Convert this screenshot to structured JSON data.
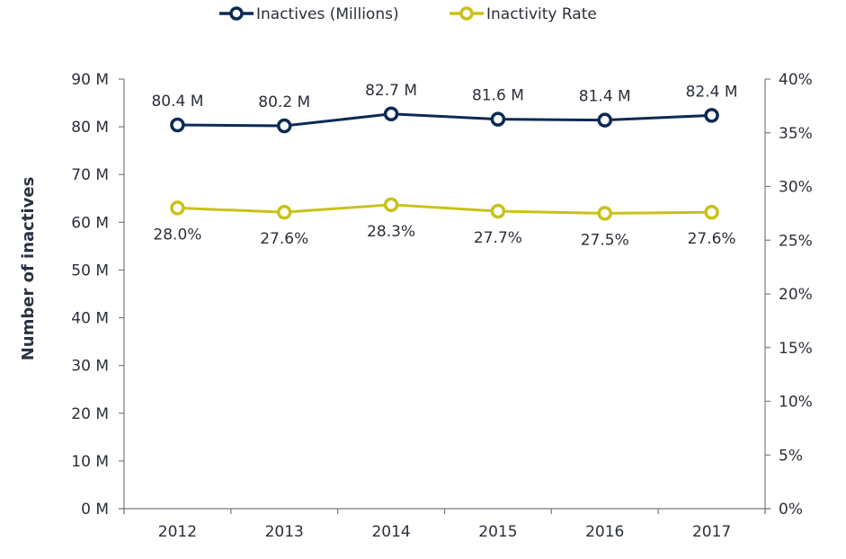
{
  "chart_data": {
    "type": "line",
    "title": "",
    "xlabel": "",
    "ylabel": "Number of inactives",
    "y2label": "",
    "categories": [
      "2012",
      "2013",
      "2014",
      "2015",
      "2016",
      "2017"
    ],
    "series": [
      {
        "name": "Inactives (Millions)",
        "axis": "left",
        "color": "#0d2a55",
        "values": [
          80.4,
          80.2,
          82.7,
          81.6,
          81.4,
          82.4
        ],
        "labels": [
          "80.4 M",
          "80.2 M",
          "82.7 M",
          "81.6 M",
          "81.4 M",
          "82.4 M"
        ],
        "label_position": "above"
      },
      {
        "name": "Inactivity Rate",
        "axis": "right",
        "color": "#c8c21a",
        "values": [
          28.0,
          27.6,
          28.3,
          27.7,
          27.5,
          27.6
        ],
        "labels": [
          "28.0%",
          "27.6%",
          "28.3%",
          "27.7%",
          "27.5%",
          "27.6%"
        ],
        "label_position": "below"
      }
    ],
    "ylim": [
      0,
      90
    ],
    "y_ticks": [
      0,
      10,
      20,
      30,
      40,
      50,
      60,
      70,
      80,
      90
    ],
    "y_tick_labels": [
      "0 M",
      "10 M",
      "20 M",
      "30 M",
      "40 M",
      "50 M",
      "60 M",
      "70 M",
      "80 M",
      "90 M"
    ],
    "y2lim": [
      0,
      40
    ],
    "y2_ticks": [
      0,
      5,
      10,
      15,
      20,
      25,
      30,
      35,
      40
    ],
    "y2_tick_labels": [
      "0%",
      "5%",
      "10%",
      "15%",
      "20%",
      "25%",
      "30%",
      "35%",
      "40%"
    ],
    "grid": false,
    "legend_position": "top-center"
  }
}
